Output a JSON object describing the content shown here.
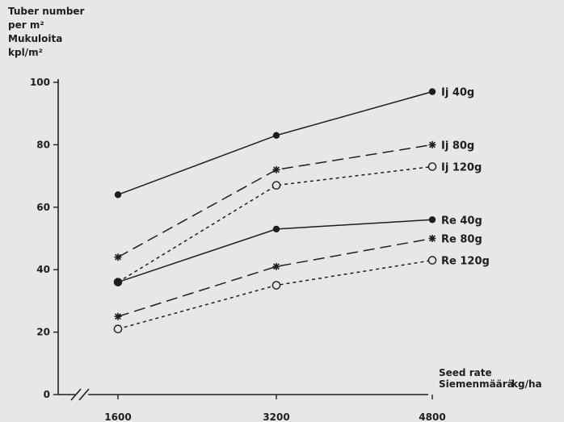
{
  "chart_data": {
    "type": "line",
    "y_axis_label": [
      "Tuber number",
      "per m²",
      "Mukuloita",
      "kpl/m²"
    ],
    "x_axis_label": [
      "Seed rate",
      "Siemenmäärä"
    ],
    "x_unit": "kg/ha",
    "x": [
      1600,
      3200,
      4800
    ],
    "xtick_labels": [
      "1600",
      "3200",
      "4800"
    ],
    "ylim": [
      0,
      100
    ],
    "yticks": [
      0,
      20,
      40,
      60,
      80,
      100
    ],
    "grid": false,
    "legend": "labels at line ends",
    "series": [
      {
        "name": "Ij 40g",
        "values": [
          64,
          83,
          97
        ],
        "line": "solid",
        "marker": "filled-circle"
      },
      {
        "name": "Ij 80g",
        "values": [
          44,
          72,
          80
        ],
        "line": "dashed",
        "marker": "star"
      },
      {
        "name": "Ij 120g",
        "values": [
          36,
          67,
          73
        ],
        "line": "dotted",
        "marker": "open-circle"
      },
      {
        "name": "Re 40g",
        "values": [
          36,
          53,
          56
        ],
        "line": "solid",
        "marker": "filled-circle"
      },
      {
        "name": "Re 80g",
        "values": [
          25,
          41,
          50
        ],
        "line": "dashed",
        "marker": "star"
      },
      {
        "name": "Re 120g",
        "values": [
          21,
          35,
          43
        ],
        "line": "dotted",
        "marker": "open-circle"
      }
    ],
    "ink_color": "#1e1e1e",
    "background_color": "#e7e7e5"
  }
}
